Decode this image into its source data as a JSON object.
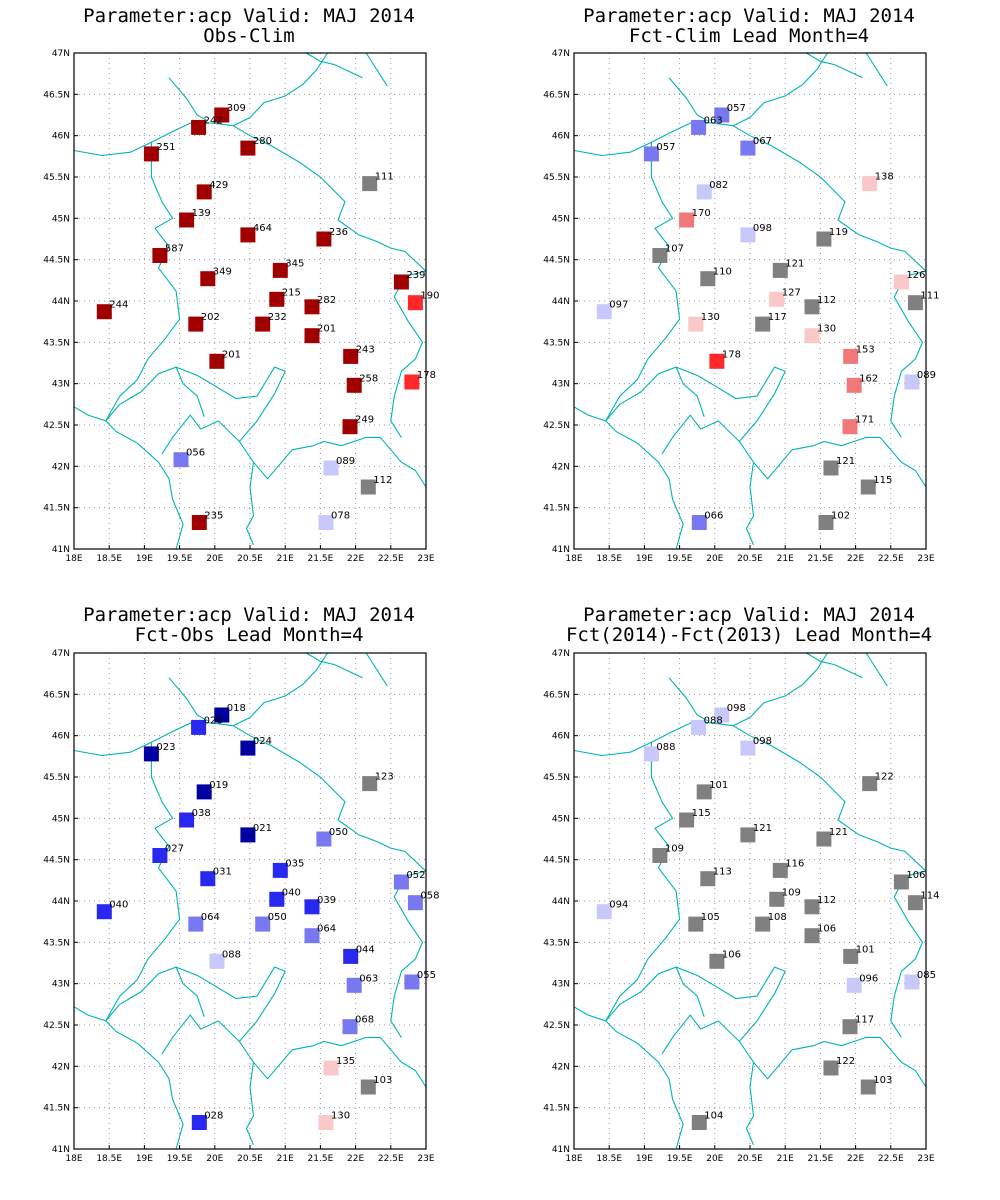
{
  "x_ticks": [
    "18E",
    "18.5E",
    "19E",
    "19.5E",
    "20E",
    "20.5E",
    "21E",
    "21.5E",
    "22E",
    "22.5E",
    "23E"
  ],
  "y_ticks": [
    "41N",
    "41.5N",
    "42N",
    "42.5N",
    "43N",
    "43.5N",
    "44N",
    "44.5N",
    "45N",
    "45.5N",
    "46N",
    "46.5N",
    "47N"
  ],
  "colors": {
    "dark_red": "#a00000",
    "red": "#ff2828",
    "mid_red": "#f07878",
    "light_red": "#fac8c8",
    "light_blue": "#c8c8fa",
    "mid_blue": "#7878f0",
    "blue": "#2828f0",
    "dark_blue": "#0000a0",
    "gray": "#808080",
    "border_cyan": "#00b4b4"
  },
  "chart_data": [
    {
      "type": "scatter",
      "title": "Parameter:acp Valid: MAJ 2014",
      "subtitle": "Obs-Clim",
      "xlim": [
        18,
        23
      ],
      "ylim": [
        41,
        47
      ],
      "grid": true,
      "stations": [
        {
          "lon": 20.1,
          "lat": 46.25,
          "label": "309",
          "value": 309,
          "color": "dark_red"
        },
        {
          "lon": 19.77,
          "lat": 46.1,
          "label": "242",
          "value": 242,
          "color": "dark_red"
        },
        {
          "lon": 20.47,
          "lat": 45.85,
          "label": "280",
          "value": 280,
          "color": "dark_red"
        },
        {
          "lon": 19.1,
          "lat": 45.78,
          "label": "251",
          "value": 251,
          "color": "dark_red"
        },
        {
          "lon": 22.2,
          "lat": 45.42,
          "label": "111",
          "value": 111,
          "color": "gray"
        },
        {
          "lon": 19.85,
          "lat": 45.32,
          "label": "429",
          "value": 429,
          "color": "dark_red"
        },
        {
          "lon": 19.6,
          "lat": 44.98,
          "label": "139",
          "value": 139,
          "color": "dark_red"
        },
        {
          "lon": 20.47,
          "lat": 44.8,
          "label": "464",
          "value": 464,
          "color": "dark_red"
        },
        {
          "lon": 21.55,
          "lat": 44.75,
          "label": "236",
          "value": 236,
          "color": "dark_red"
        },
        {
          "lon": 19.22,
          "lat": 44.55,
          "label": "587",
          "value": 587,
          "color": "dark_red"
        },
        {
          "lon": 20.93,
          "lat": 44.37,
          "label": "345",
          "value": 345,
          "color": "dark_red"
        },
        {
          "lon": 19.9,
          "lat": 44.27,
          "label": "349",
          "value": 349,
          "color": "dark_red"
        },
        {
          "lon": 22.65,
          "lat": 44.23,
          "label": "239",
          "value": 239,
          "color": "dark_red"
        },
        {
          "lon": 20.88,
          "lat": 44.02,
          "label": "215",
          "value": 215,
          "color": "dark_red"
        },
        {
          "lon": 22.85,
          "lat": 43.98,
          "label": "190",
          "value": 190,
          "color": "red"
        },
        {
          "lon": 21.38,
          "lat": 43.93,
          "label": "282",
          "value": 282,
          "color": "dark_red"
        },
        {
          "lon": 18.43,
          "lat": 43.87,
          "label": "244",
          "value": 244,
          "color": "dark_red"
        },
        {
          "lon": 19.73,
          "lat": 43.72,
          "label": "202",
          "value": 202,
          "color": "dark_red"
        },
        {
          "lon": 20.68,
          "lat": 43.72,
          "label": "232",
          "value": 232,
          "color": "dark_red"
        },
        {
          "lon": 21.38,
          "lat": 43.58,
          "label": "201",
          "value": 201,
          "color": "dark_red"
        },
        {
          "lon": 21.93,
          "lat": 43.33,
          "label": "243",
          "value": 243,
          "color": "dark_red"
        },
        {
          "lon": 20.03,
          "lat": 43.27,
          "label": "201",
          "value": 201,
          "color": "dark_red"
        },
        {
          "lon": 21.98,
          "lat": 42.98,
          "label": "258",
          "value": 258,
          "color": "dark_red"
        },
        {
          "lon": 22.8,
          "lat": 43.02,
          "label": "178",
          "value": 178,
          "color": "red"
        },
        {
          "lon": 21.92,
          "lat": 42.48,
          "label": "249",
          "value": 249,
          "color": "dark_red"
        },
        {
          "lon": 19.52,
          "lat": 42.08,
          "label": "056",
          "value": 56,
          "color": "mid_blue"
        },
        {
          "lon": 21.65,
          "lat": 41.98,
          "label": "089",
          "value": 89,
          "color": "light_blue"
        },
        {
          "lon": 22.18,
          "lat": 41.75,
          "label": "112",
          "value": 112,
          "color": "gray"
        },
        {
          "lon": 19.78,
          "lat": 41.32,
          "label": "235",
          "value": 235,
          "color": "dark_red"
        },
        {
          "lon": 21.58,
          "lat": 41.32,
          "label": "078",
          "value": 78,
          "color": "light_blue"
        }
      ]
    },
    {
      "type": "scatter",
      "title": "Parameter:acp Valid: MAJ 2014",
      "subtitle": "Fct-Clim Lead Month=4",
      "xlim": [
        18,
        23
      ],
      "ylim": [
        41,
        47
      ],
      "grid": true,
      "stations": [
        {
          "lon": 20.1,
          "lat": 46.25,
          "label": "057",
          "value": 57,
          "color": "mid_blue"
        },
        {
          "lon": 19.77,
          "lat": 46.1,
          "label": "063",
          "value": 63,
          "color": "mid_blue"
        },
        {
          "lon": 20.47,
          "lat": 45.85,
          "label": "067",
          "value": 67,
          "color": "mid_blue"
        },
        {
          "lon": 19.1,
          "lat": 45.78,
          "label": "057",
          "value": 57,
          "color": "mid_blue"
        },
        {
          "lon": 22.2,
          "lat": 45.42,
          "label": "138",
          "value": 138,
          "color": "light_red"
        },
        {
          "lon": 19.85,
          "lat": 45.32,
          "label": "082",
          "value": 82,
          "color": "light_blue"
        },
        {
          "lon": 19.6,
          "lat": 44.98,
          "label": "170",
          "value": 170,
          "color": "mid_red"
        },
        {
          "lon": 20.47,
          "lat": 44.8,
          "label": "098",
          "value": 98,
          "color": "light_blue"
        },
        {
          "lon": 21.55,
          "lat": 44.75,
          "label": "119",
          "value": 119,
          "color": "gray"
        },
        {
          "lon": 19.22,
          "lat": 44.55,
          "label": "107",
          "value": 107,
          "color": "gray"
        },
        {
          "lon": 20.93,
          "lat": 44.37,
          "label": "121",
          "value": 121,
          "color": "gray"
        },
        {
          "lon": 19.9,
          "lat": 44.27,
          "label": "110",
          "value": 110,
          "color": "gray"
        },
        {
          "lon": 22.65,
          "lat": 44.23,
          "label": "126",
          "value": 126,
          "color": "light_red"
        },
        {
          "lon": 20.88,
          "lat": 44.02,
          "label": "127",
          "value": 127,
          "color": "light_red"
        },
        {
          "lon": 22.85,
          "lat": 43.98,
          "label": "111",
          "value": 111,
          "color": "gray"
        },
        {
          "lon": 21.38,
          "lat": 43.93,
          "label": "112",
          "value": 112,
          "color": "gray"
        },
        {
          "lon": 18.43,
          "lat": 43.87,
          "label": "097",
          "value": 97,
          "color": "light_blue"
        },
        {
          "lon": 19.73,
          "lat": 43.72,
          "label": "130",
          "value": 130,
          "color": "light_red"
        },
        {
          "lon": 20.68,
          "lat": 43.72,
          "label": "117",
          "value": 117,
          "color": "gray"
        },
        {
          "lon": 21.38,
          "lat": 43.58,
          "label": "130",
          "value": 130,
          "color": "light_red"
        },
        {
          "lon": 21.93,
          "lat": 43.33,
          "label": "153",
          "value": 153,
          "color": "mid_red"
        },
        {
          "lon": 20.03,
          "lat": 43.27,
          "label": "178",
          "value": 178,
          "color": "red"
        },
        {
          "lon": 21.98,
          "lat": 42.98,
          "label": "162",
          "value": 162,
          "color": "mid_red"
        },
        {
          "lon": 22.8,
          "lat": 43.02,
          "label": "089",
          "value": 89,
          "color": "light_blue"
        },
        {
          "lon": 21.92,
          "lat": 42.48,
          "label": "171",
          "value": 171,
          "color": "mid_red"
        },
        {
          "lon": 21.65,
          "lat": 41.98,
          "label": "121",
          "value": 121,
          "color": "gray"
        },
        {
          "lon": 22.18,
          "lat": 41.75,
          "label": "115",
          "value": 115,
          "color": "gray"
        },
        {
          "lon": 19.78,
          "lat": 41.32,
          "label": "066",
          "value": 66,
          "color": "mid_blue"
        },
        {
          "lon": 21.58,
          "lat": 41.32,
          "label": "102",
          "value": 102,
          "color": "gray"
        }
      ]
    },
    {
      "type": "scatter",
      "title": "Parameter:acp Valid: MAJ 2014",
      "subtitle": "Fct-Obs Lead Month=4",
      "xlim": [
        18,
        23
      ],
      "ylim": [
        41,
        47
      ],
      "grid": true,
      "stations": [
        {
          "lon": 20.1,
          "lat": 46.25,
          "label": "018",
          "value": 18,
          "color": "dark_blue"
        },
        {
          "lon": 19.77,
          "lat": 46.1,
          "label": "026",
          "value": 26,
          "color": "blue"
        },
        {
          "lon": 20.47,
          "lat": 45.85,
          "label": "024",
          "value": 24,
          "color": "dark_blue"
        },
        {
          "lon": 19.1,
          "lat": 45.78,
          "label": "023",
          "value": 23,
          "color": "dark_blue"
        },
        {
          "lon": 22.2,
          "lat": 45.42,
          "label": "123",
          "value": 123,
          "color": "gray"
        },
        {
          "lon": 19.85,
          "lat": 45.32,
          "label": "019",
          "value": 19,
          "color": "dark_blue"
        },
        {
          "lon": 19.6,
          "lat": 44.98,
          "label": "038",
          "value": 38,
          "color": "blue"
        },
        {
          "lon": 20.47,
          "lat": 44.8,
          "label": "021",
          "value": 21,
          "color": "dark_blue"
        },
        {
          "lon": 21.55,
          "lat": 44.75,
          "label": "050",
          "value": 50,
          "color": "mid_blue"
        },
        {
          "lon": 19.22,
          "lat": 44.55,
          "label": "027",
          "value": 27,
          "color": "blue"
        },
        {
          "lon": 20.93,
          "lat": 44.37,
          "label": "035",
          "value": 35,
          "color": "blue"
        },
        {
          "lon": 19.9,
          "lat": 44.27,
          "label": "031",
          "value": 31,
          "color": "blue"
        },
        {
          "lon": 22.65,
          "lat": 44.23,
          "label": "052",
          "value": 52,
          "color": "mid_blue"
        },
        {
          "lon": 20.88,
          "lat": 44.02,
          "label": "040",
          "value": 40,
          "color": "blue"
        },
        {
          "lon": 22.85,
          "lat": 43.98,
          "label": "058",
          "value": 58,
          "color": "mid_blue"
        },
        {
          "lon": 21.38,
          "lat": 43.93,
          "label": "039",
          "value": 39,
          "color": "blue"
        },
        {
          "lon": 18.43,
          "lat": 43.87,
          "label": "040",
          "value": 40,
          "color": "blue"
        },
        {
          "lon": 19.73,
          "lat": 43.72,
          "label": "064",
          "value": 64,
          "color": "mid_blue"
        },
        {
          "lon": 20.68,
          "lat": 43.72,
          "label": "050",
          "value": 50,
          "color": "mid_blue"
        },
        {
          "lon": 21.38,
          "lat": 43.58,
          "label": "064",
          "value": 64,
          "color": "mid_blue"
        },
        {
          "lon": 21.93,
          "lat": 43.33,
          "label": "044",
          "value": 44,
          "color": "blue"
        },
        {
          "lon": 20.03,
          "lat": 43.27,
          "label": "088",
          "value": 88,
          "color": "light_blue"
        },
        {
          "lon": 21.98,
          "lat": 42.98,
          "label": "063",
          "value": 63,
          "color": "mid_blue"
        },
        {
          "lon": 22.8,
          "lat": 43.02,
          "label": "055",
          "value": 55,
          "color": "mid_blue"
        },
        {
          "lon": 21.92,
          "lat": 42.48,
          "label": "068",
          "value": 68,
          "color": "mid_blue"
        },
        {
          "lon": 21.65,
          "lat": 41.98,
          "label": "135",
          "value": 135,
          "color": "light_red"
        },
        {
          "lon": 22.18,
          "lat": 41.75,
          "label": "103",
          "value": 103,
          "color": "gray"
        },
        {
          "lon": 19.78,
          "lat": 41.32,
          "label": "028",
          "value": 28,
          "color": "blue"
        },
        {
          "lon": 21.58,
          "lat": 41.32,
          "label": "130",
          "value": 130,
          "color": "light_red"
        }
      ]
    },
    {
      "type": "scatter",
      "title": "Parameter:acp Valid: MAJ 2014",
      "subtitle": "Fct(2014)-Fct(2013) Lead Month=4",
      "xlim": [
        18,
        23
      ],
      "ylim": [
        41,
        47
      ],
      "grid": true,
      "stations": [
        {
          "lon": 20.1,
          "lat": 46.25,
          "label": "098",
          "value": 98,
          "color": "light_blue"
        },
        {
          "lon": 19.77,
          "lat": 46.1,
          "label": "088",
          "value": 88,
          "color": "light_blue"
        },
        {
          "lon": 20.47,
          "lat": 45.85,
          "label": "098",
          "value": 98,
          "color": "light_blue"
        },
        {
          "lon": 19.1,
          "lat": 45.78,
          "label": "088",
          "value": 88,
          "color": "light_blue"
        },
        {
          "lon": 22.2,
          "lat": 45.42,
          "label": "122",
          "value": 122,
          "color": "gray"
        },
        {
          "lon": 19.85,
          "lat": 45.32,
          "label": "101",
          "value": 101,
          "color": "gray"
        },
        {
          "lon": 19.6,
          "lat": 44.98,
          "label": "115",
          "value": 115,
          "color": "gray"
        },
        {
          "lon": 20.47,
          "lat": 44.8,
          "label": "121",
          "value": 121,
          "color": "gray"
        },
        {
          "lon": 21.55,
          "lat": 44.75,
          "label": "121",
          "value": 121,
          "color": "gray"
        },
        {
          "lon": 19.22,
          "lat": 44.55,
          "label": "109",
          "value": 109,
          "color": "gray"
        },
        {
          "lon": 20.93,
          "lat": 44.37,
          "label": "116",
          "value": 116,
          "color": "gray"
        },
        {
          "lon": 19.9,
          "lat": 44.27,
          "label": "113",
          "value": 113,
          "color": "gray"
        },
        {
          "lon": 22.65,
          "lat": 44.23,
          "label": "106",
          "value": 106,
          "color": "gray"
        },
        {
          "lon": 20.88,
          "lat": 44.02,
          "label": "109",
          "value": 109,
          "color": "gray"
        },
        {
          "lon": 22.85,
          "lat": 43.98,
          "label": "114",
          "value": 114,
          "color": "gray"
        },
        {
          "lon": 21.38,
          "lat": 43.93,
          "label": "112",
          "value": 112,
          "color": "gray"
        },
        {
          "lon": 18.43,
          "lat": 43.87,
          "label": "094",
          "value": 94,
          "color": "light_blue"
        },
        {
          "lon": 19.73,
          "lat": 43.72,
          "label": "105",
          "value": 105,
          "color": "gray"
        },
        {
          "lon": 20.68,
          "lat": 43.72,
          "label": "108",
          "value": 108,
          "color": "gray"
        },
        {
          "lon": 21.38,
          "lat": 43.58,
          "label": "106",
          "value": 106,
          "color": "gray"
        },
        {
          "lon": 21.93,
          "lat": 43.33,
          "label": "101",
          "value": 101,
          "color": "gray"
        },
        {
          "lon": 20.03,
          "lat": 43.27,
          "label": "106",
          "value": 106,
          "color": "gray"
        },
        {
          "lon": 21.98,
          "lat": 42.98,
          "label": "096",
          "value": 96,
          "color": "light_blue"
        },
        {
          "lon": 22.8,
          "lat": 43.02,
          "label": "085",
          "value": 85,
          "color": "light_blue"
        },
        {
          "lon": 21.92,
          "lat": 42.48,
          "label": "117",
          "value": 117,
          "color": "gray"
        },
        {
          "lon": 21.65,
          "lat": 41.98,
          "label": "122",
          "value": 122,
          "color": "gray"
        },
        {
          "lon": 22.18,
          "lat": 41.75,
          "label": "103",
          "value": 103,
          "color": "gray"
        },
        {
          "lon": 19.78,
          "lat": 41.32,
          "label": "104",
          "value": 104,
          "color": "gray"
        }
      ]
    }
  ]
}
